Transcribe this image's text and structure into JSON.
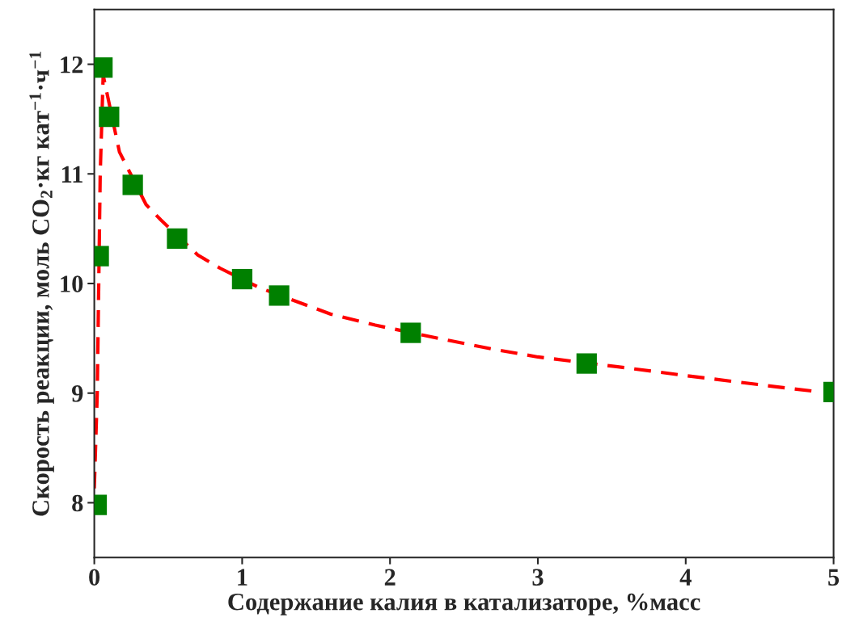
{
  "chart_data": {
    "type": "scatter",
    "xlabel": "Содержание калия в катализаторе, %масс",
    "ylabel": "Скорость реакции, моль CO$_{2}$·кг кат$^{−1}$·ч$^{−1}$",
    "xlim": [
      0,
      5
    ],
    "ylim": [
      7.5,
      12.5
    ],
    "xticks": [
      0,
      1,
      2,
      3,
      4,
      5
    ],
    "yticks": [
      8,
      9,
      10,
      11,
      12
    ],
    "grid": false,
    "legend": false,
    "series": [
      {
        "type": "line",
        "color": "#ff0000",
        "line_style": "dashed",
        "marker": "none",
        "x": [
          0.0,
          0.02,
          0.04,
          0.06,
          0.17,
          0.35,
          0.45,
          0.7,
          0.85,
          1.12,
          1.6,
          1.9,
          2.4,
          2.7,
          3.0,
          3.6,
          4.0,
          4.6,
          4.85
        ],
        "values": [
          8.13,
          9.0,
          11.0,
          11.9,
          11.2,
          10.72,
          10.58,
          10.26,
          10.14,
          9.96,
          9.72,
          9.62,
          9.48,
          9.4,
          9.33,
          9.23,
          9.16,
          9.06,
          9.02
        ]
      },
      {
        "color": "#008000",
        "marker": "square",
        "x": [
          0.016,
          0.03,
          0.055,
          0.1,
          0.26,
          0.56,
          1.0,
          1.25,
          2.14,
          3.33,
          5.0
        ],
        "values": [
          7.98,
          10.25,
          11.97,
          11.52,
          10.9,
          10.41,
          10.04,
          9.89,
          9.55,
          9.27,
          9.01
        ]
      }
    ]
  }
}
